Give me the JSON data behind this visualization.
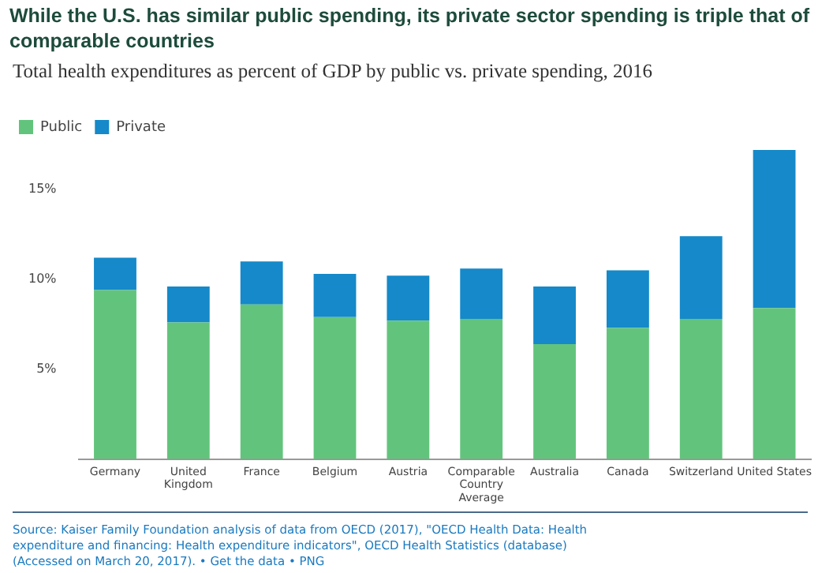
{
  "chart_data": {
    "type": "bar",
    "stacked": true,
    "title": "While the U.S. has similar public spending, its private sector spending is triple that of comparable countries",
    "subtitle": "Total health expenditures as percent of GDP by public vs. private spending, 2016",
    "categories": [
      "Germany",
      "United Kingdom",
      "France",
      "Belgium",
      "Austria",
      "Comparable Country Average",
      "Australia",
      "Canada",
      "Switzerland",
      "United States"
    ],
    "series": [
      {
        "name": "Public",
        "color": "#62c47c",
        "values": [
          9.4,
          7.6,
          8.6,
          7.9,
          7.7,
          7.8,
          6.4,
          7.3,
          7.8,
          8.4
        ]
      },
      {
        "name": "Private",
        "color": "#1589c9",
        "values": [
          1.8,
          2.0,
          2.4,
          2.4,
          2.5,
          2.8,
          3.2,
          3.2,
          4.6,
          8.8
        ]
      }
    ],
    "ylim": [
      0,
      17.2
    ],
    "yticks": [
      {
        "value": 5,
        "label": "5%"
      },
      {
        "value": 10,
        "label": "10%"
      },
      {
        "value": 15,
        "label": "15%"
      }
    ],
    "grid": false,
    "legend": "top left",
    "annotations": [
      "Source: Kaiser Family Foundation analysis of data from OECD (2017), \"OECD Health Data: Health expenditure and financing: Health expenditure indicators\", OECD Health Statistics (database)(Accessed on March 20, 2017). • Get the data • PNG"
    ]
  }
}
